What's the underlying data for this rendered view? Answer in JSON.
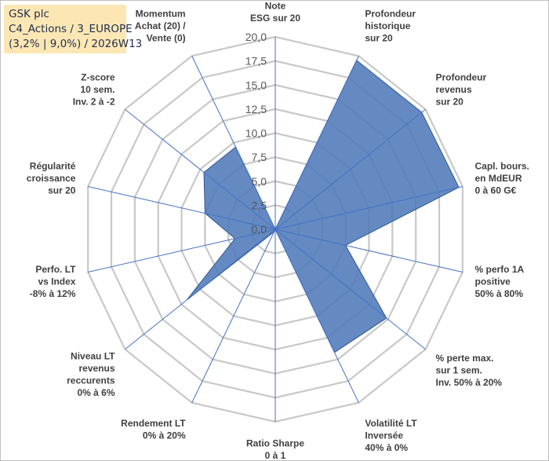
{
  "title": {
    "line1": "GSK plc",
    "line2": "C4_Actions / 3_EUROPE",
    "line3": "(3,2% | 9,0%) / 2026W13"
  },
  "colors": {
    "fill": "#4f7ab8",
    "stroke": "#2f5597",
    "grid": "#c8c8c8",
    "axis": "#4472c4",
    "titleBg": "#fce7b4"
  },
  "chart_data": {
    "type": "radar",
    "rmax": 20,
    "ticks": [
      "0,0",
      "2,5",
      "5,0",
      "7,5",
      "10,0",
      "12,5",
      "15,0",
      "17,5",
      "20,0"
    ],
    "axes": [
      {
        "label": [
          "Note",
          "ESG sur 20"
        ],
        "value": 0
      },
      {
        "label": [
          "Profondeur",
          "historique",
          "sur 20"
        ],
        "value": 19.5
      },
      {
        "label": [
          "Profondeur",
          "revenus",
          "sur 20"
        ],
        "value": 19.5
      },
      {
        "label": [
          "Capl. bours.",
          "en MdEUR",
          "0 à 60 G€"
        ],
        "value": 19.6
      },
      {
        "label": [
          "% perfo 1A",
          "positive",
          "50% à 80%"
        ],
        "value": 7.5
      },
      {
        "label": [
          "% perte max.",
          "sur 1 sem.",
          "Inv. 50% à 20%"
        ],
        "value": 14.8
      },
      {
        "label": [
          "Volatilité LT",
          "Inversée",
          "40% à 0%"
        ],
        "value": 14.2
      },
      {
        "label": [
          "Ratio Sharpe",
          "0 à 1"
        ],
        "value": 0
      },
      {
        "label": [
          "Rendement LT",
          "0% à 20%"
        ],
        "value": 0.3
      },
      {
        "label": [
          "Niveau LT",
          "revenus",
          "reccurents",
          "0% à 6%"
        ],
        "value": 11.8
      },
      {
        "label": [
          "Perfo. LT",
          "vs Index",
          "-8% à 12%"
        ],
        "value": 4.3
      },
      {
        "label": [
          "Régularité",
          "croissance",
          "sur 20"
        ],
        "value": 7.5
      },
      {
        "label": [
          "Z-score",
          "10 sem.",
          "Inv. 2 à -2"
        ],
        "value": 9.5
      },
      {
        "label": [
          "Momentum",
          "Achat (20) /",
          "Vente (0)"
        ],
        "value": 9.5
      }
    ]
  }
}
